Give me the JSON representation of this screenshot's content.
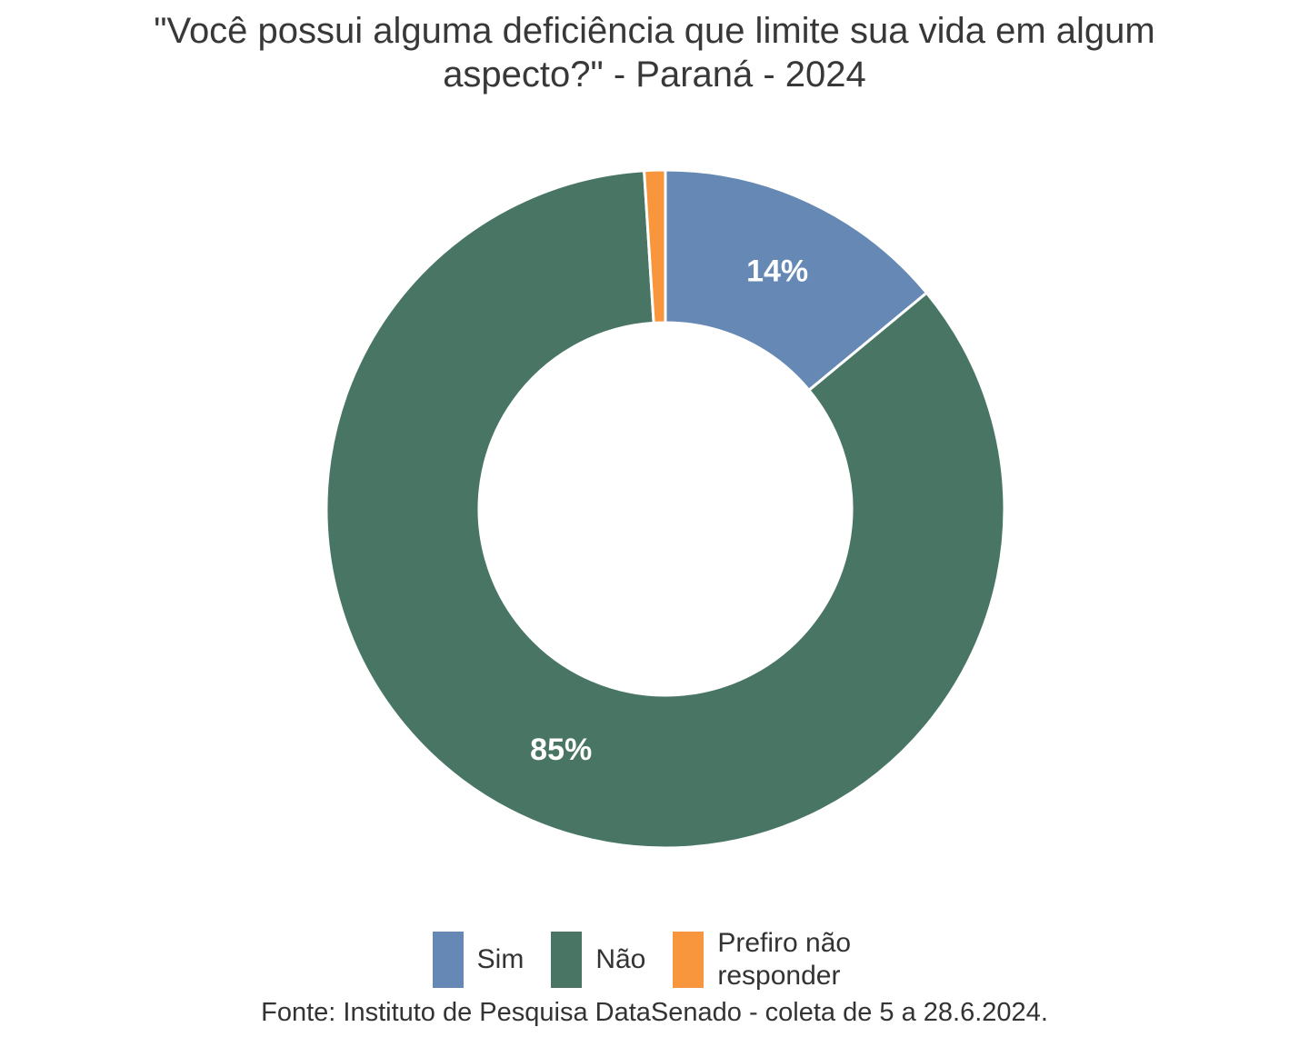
{
  "title": "\"Você possui alguma deficiência que limite sua vida em algum aspecto?\" - Paraná - 2024",
  "footer": "Fonte: Instituto de Pesquisa DataSenado - coleta de 5 a 28.6.2024.",
  "colors": {
    "background": "#FFFFFF",
    "title_text": "#383838",
    "slice_border": "#FFFFFF",
    "slice_label_text": "#FFFFFF",
    "sim_blue": "#6589B4",
    "nao_green": "#497664",
    "prefiro_orange": "#F8963E"
  },
  "chart_data": {
    "type": "pie",
    "subtype": "donut",
    "title": "\"Você possui alguma deficiência que limite sua vida em algum aspecto?\" - Paraná - 2024",
    "source": "Fonte: Instituto de Pesquisa DataSenado - coleta de 5 a 28.6.2024.",
    "start_angle_deg": 0,
    "direction": "clockwise",
    "inner_radius_ratio": 0.55,
    "legend_position": "bottom",
    "grid": false,
    "slices": [
      {
        "label": "Sim",
        "value": 14,
        "pct_label": "14%",
        "color": "#6589B4",
        "show_label": true
      },
      {
        "label": "Não",
        "value": 85,
        "pct_label": "85%",
        "color": "#497664",
        "show_label": true
      },
      {
        "label": "Prefiro não responder",
        "value": 1,
        "pct_label": "1%",
        "color": "#F8963E",
        "show_label": false
      }
    ]
  }
}
